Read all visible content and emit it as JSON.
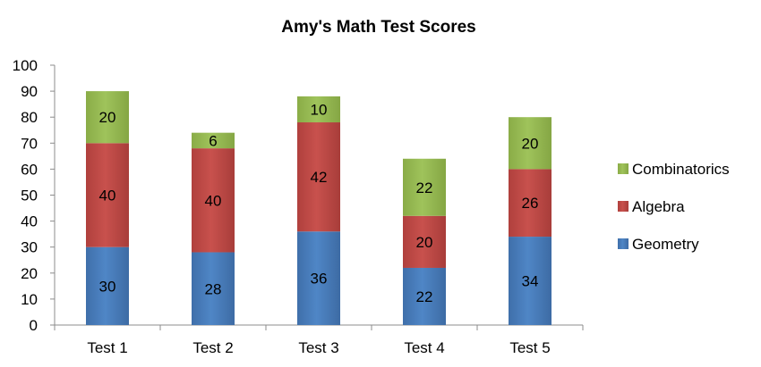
{
  "chart_data": {
    "type": "bar",
    "stacked": true,
    "title": "Amy's Math Test Scores",
    "xlabel": "",
    "ylabel": "",
    "categories": [
      "Test 1",
      "Test 2",
      "Test 3",
      "Test 4",
      "Test 5"
    ],
    "ylim": [
      0,
      100
    ],
    "yticks": [
      0,
      10,
      20,
      30,
      40,
      50,
      60,
      70,
      80,
      90,
      100
    ],
    "grid": false,
    "legend_position": "right",
    "series": [
      {
        "name": "Geometry",
        "values": [
          30,
          28,
          36,
          22,
          34
        ],
        "color": "#4a7ebb"
      },
      {
        "name": "Algebra",
        "values": [
          40,
          40,
          42,
          20,
          26
        ],
        "color": "#be4b48"
      },
      {
        "name": "Combinatorics",
        "values": [
          20,
          6,
          10,
          22,
          20
        ],
        "color": "#98b954"
      }
    ]
  }
}
